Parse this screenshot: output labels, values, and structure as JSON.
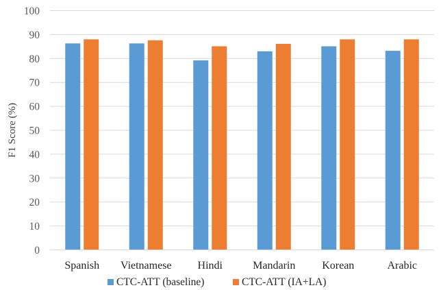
{
  "chart_data": {
    "type": "bar",
    "title": "",
    "xlabel": "",
    "ylabel": "F1 Score (%)",
    "ylim": [
      0,
      100
    ],
    "yticks": [
      0,
      10,
      20,
      30,
      40,
      50,
      60,
      70,
      80,
      90,
      100
    ],
    "grid": true,
    "legend_position": "bottom",
    "categories": [
      "Spanish",
      "Vietnamese",
      "Hindi",
      "Mandarin",
      "Korean",
      "Arabic"
    ],
    "series": [
      {
        "name": "CTC-ATT (baseline)",
        "color": "#5b9bd5",
        "values": [
          86.3,
          86.3,
          79.2,
          83.0,
          85.1,
          83.2
        ]
      },
      {
        "name": "CTC-ATT (IA+LA)",
        "color": "#ed7d31",
        "values": [
          88.0,
          87.6,
          85.1,
          86.1,
          88.0,
          88.0
        ]
      }
    ]
  }
}
